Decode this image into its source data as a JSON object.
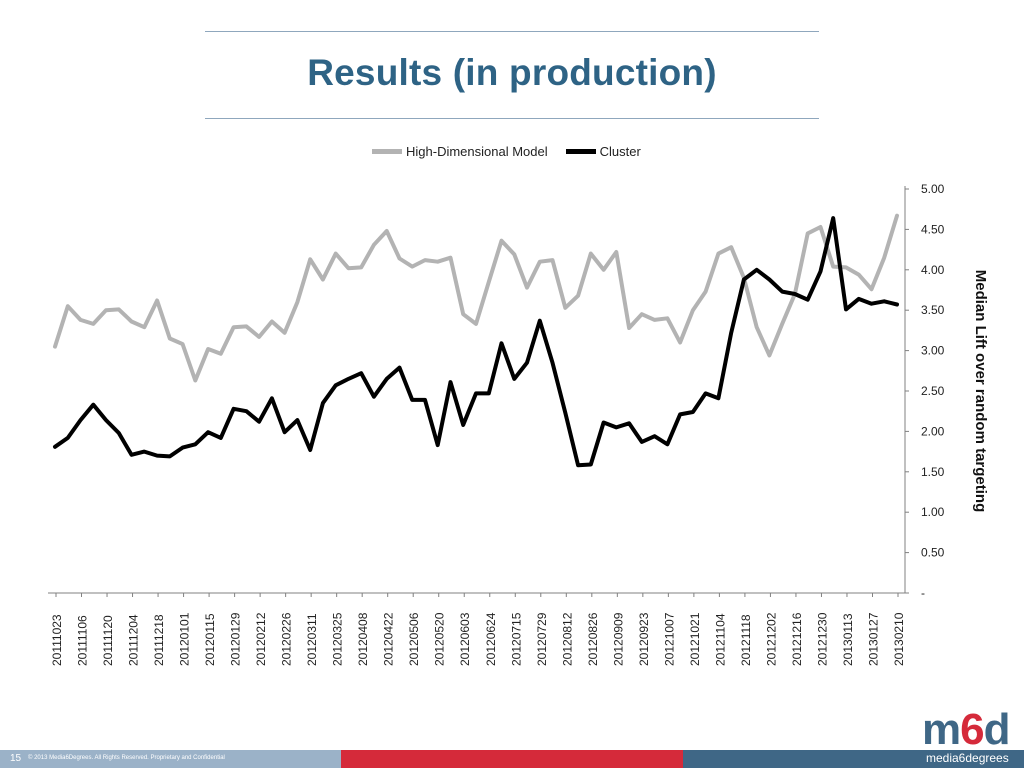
{
  "slide": {
    "title": "Results (in production)",
    "page_number": "15",
    "copyright": "© 2013 Media6Degrees. All Rights Reserved. Proprietary and Confidential",
    "logo": {
      "m": "m",
      "six": "6",
      "d": "d",
      "subtitle": "media6degrees"
    },
    "colors": {
      "title": "#2e6385",
      "footer_left": "#9bb2c8",
      "footer_mid": "#d52a3a",
      "footer_right": "#3f6786"
    }
  },
  "chart_data": {
    "type": "line",
    "title": "",
    "xlabel": "",
    "ylabel": "Median Lift over random targeting",
    "ylim": [
      0,
      5
    ],
    "yticks": [
      0,
      0.5,
      1,
      1.5,
      2,
      2.5,
      3,
      3.5,
      4,
      4.5,
      5
    ],
    "ytick_labels": [
      "-",
      "0.50",
      "1.00",
      "1.50",
      "2.00",
      "2.50",
      "3.00",
      "3.50",
      "4.00",
      "4.50",
      "5.00"
    ],
    "y_axis_side": "right",
    "legend_position": "top",
    "grid": false,
    "x_tick_labels": [
      "20111023",
      "20111106",
      "20111120",
      "20111204",
      "20111218",
      "20120101",
      "20120115",
      "20120129",
      "20120212",
      "20120226",
      "20120311",
      "20120325",
      "20120408",
      "20120422",
      "20120506",
      "20120520",
      "20120603",
      "20120624",
      "20120715",
      "20120729",
      "20120812",
      "20120826",
      "20120909",
      "20120923",
      "20121007",
      "20121021",
      "20121104",
      "20121118",
      "20121202",
      "20121216",
      "20121230",
      "20130113",
      "20130127",
      "20130210"
    ],
    "series": [
      {
        "name": "High-Dimensional Model",
        "color": "#b3b3b3",
        "values": [
          3.05,
          3.55,
          3.38,
          3.33,
          3.5,
          3.51,
          3.36,
          3.29,
          3.62,
          3.15,
          3.08,
          2.63,
          3.02,
          2.96,
          3.29,
          3.3,
          3.17,
          3.36,
          3.22,
          3.6,
          4.13,
          3.88,
          4.2,
          4.02,
          4.03,
          4.31,
          4.48,
          4.14,
          4.04,
          4.12,
          4.1,
          4.15,
          3.45,
          3.33,
          3.85,
          4.36,
          4.19,
          3.78,
          4.1,
          4.12,
          3.53,
          3.68,
          4.2,
          4.0,
          4.22,
          3.28,
          3.45,
          3.38,
          3.4,
          3.1,
          3.5,
          3.73,
          4.2,
          4.28,
          3.9,
          3.29,
          2.94,
          3.33,
          3.7,
          4.45,
          4.53,
          4.04,
          4.03,
          3.94,
          3.76,
          4.15,
          4.67
        ]
      },
      {
        "name": "Cluster",
        "color": "#000000",
        "values": [
          1.81,
          1.92,
          2.14,
          2.33,
          2.14,
          1.98,
          1.71,
          1.75,
          1.7,
          1.69,
          1.8,
          1.84,
          1.99,
          1.92,
          2.28,
          2.25,
          2.12,
          2.41,
          1.99,
          2.14,
          1.77,
          2.35,
          2.57,
          2.65,
          2.72,
          2.43,
          2.65,
          2.79,
          2.39,
          2.39,
          1.83,
          2.61,
          2.08,
          2.47,
          2.47,
          3.09,
          2.65,
          2.85,
          3.37,
          2.85,
          2.23,
          1.58,
          1.59,
          2.11,
          2.05,
          2.1,
          1.87,
          1.94,
          1.84,
          2.21,
          2.24,
          2.47,
          2.41,
          3.22,
          3.88,
          4.0,
          3.88,
          3.73,
          3.7,
          3.63,
          3.98,
          4.64,
          3.51,
          3.64,
          3.58,
          3.61,
          3.57
        ]
      }
    ]
  }
}
